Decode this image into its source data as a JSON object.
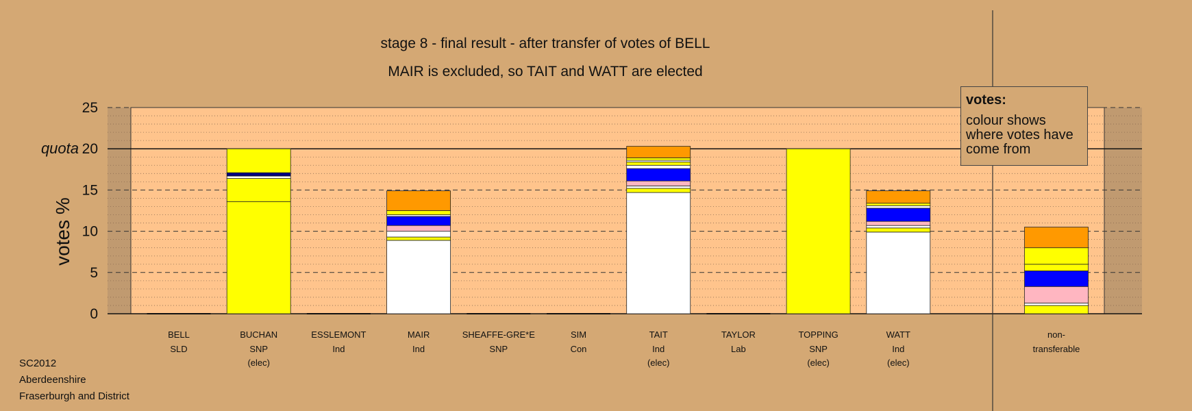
{
  "header": {
    "title": "stage 8 - final result - after transfer of votes of BELL",
    "subtitle": "MAIR is excluded, so TAIT and WATT are elected"
  },
  "legend": {
    "heading": "votes:",
    "body": "colour shows where votes have come from"
  },
  "footer": {
    "line1": "SC2012",
    "line2": "Aberdeenshire",
    "line3": "Fraserburgh and District"
  },
  "colors": {
    "background": "#D4A874",
    "plot_area": "#FFC48C",
    "yellow": "#FFFF00",
    "white": "#FFFFFF",
    "blue": "#0000FF",
    "pink": "#FFB6C1",
    "orange": "#FF9900",
    "navy": "#000080"
  },
  "chart_data": {
    "type": "bar",
    "stacked": true,
    "ylabel": "votes %",
    "ylim": [
      0,
      25
    ],
    "yticks": [
      0,
      5,
      10,
      15,
      20,
      25
    ],
    "quota": 20,
    "quota_label": "quota",
    "grid": "dashed every 5, dotted every 1",
    "candidates": [
      {
        "name": "BELL",
        "party": "SLD",
        "status": "",
        "segments": []
      },
      {
        "name": "BUCHAN",
        "party": "SNP",
        "status": "(elec)",
        "segments": [
          {
            "color": "yellow",
            "value": 13.6
          },
          {
            "color": "yellow",
            "value": 2.8
          },
          {
            "color": "white",
            "value": 0.3
          },
          {
            "color": "navy",
            "value": 0.4
          },
          {
            "color": "yellow",
            "value": 2.9
          }
        ]
      },
      {
        "name": "ESSLEMONT",
        "party": "Ind",
        "status": "",
        "segments": []
      },
      {
        "name": "MAIR",
        "party": "Ind",
        "status": "",
        "segments": [
          {
            "color": "white",
            "value": 8.9
          },
          {
            "color": "yellow",
            "value": 0.4
          },
          {
            "color": "white",
            "value": 0.7
          },
          {
            "color": "pink",
            "value": 0.7
          },
          {
            "color": "blue",
            "value": 1.1
          },
          {
            "color": "white",
            "value": 0.2
          },
          {
            "color": "yellow",
            "value": 0.5
          },
          {
            "color": "orange",
            "value": 2.4
          }
        ]
      },
      {
        "name": "SHEAFFE-GRE*E",
        "party": "SNP",
        "status": "",
        "segments": []
      },
      {
        "name": "SIM",
        "party": "Con",
        "status": "",
        "segments": []
      },
      {
        "name": "TAIT",
        "party": "Ind",
        "status": "(elec)",
        "segments": [
          {
            "color": "white",
            "value": 14.7
          },
          {
            "color": "yellow",
            "value": 0.5
          },
          {
            "color": "white",
            "value": 0.3
          },
          {
            "color": "pink",
            "value": 0.6
          },
          {
            "color": "blue",
            "value": 1.5
          },
          {
            "color": "white",
            "value": 0.4
          },
          {
            "color": "yellow",
            "value": 0.4
          },
          {
            "color": "white",
            "value": 0.2
          },
          {
            "color": "yellow",
            "value": 0.3
          },
          {
            "color": "orange",
            "value": 1.4
          }
        ]
      },
      {
        "name": "TAYLOR",
        "party": "Lab",
        "status": "",
        "segments": []
      },
      {
        "name": "TOPPING",
        "party": "SNP",
        "status": "(elec)",
        "segments": [
          {
            "color": "yellow",
            "value": 20.0
          }
        ]
      },
      {
        "name": "WATT",
        "party": "Ind",
        "status": "(elec)",
        "segments": [
          {
            "color": "white",
            "value": 9.9
          },
          {
            "color": "yellow",
            "value": 0.5
          },
          {
            "color": "white",
            "value": 0.3
          },
          {
            "color": "pink",
            "value": 0.5
          },
          {
            "color": "blue",
            "value": 1.6
          },
          {
            "color": "white",
            "value": 0.3
          },
          {
            "color": "yellow",
            "value": 0.3
          },
          {
            "color": "orange",
            "value": 1.5
          }
        ]
      }
    ],
    "nontransferable": {
      "label_line1": "non-",
      "label_line2": "transferable",
      "segments": [
        {
          "color": "yellow",
          "value": 1.0
        },
        {
          "color": "white",
          "value": 0.3
        },
        {
          "color": "pink",
          "value": 2.0
        },
        {
          "color": "blue",
          "value": 1.9
        },
        {
          "color": "yellow",
          "value": 0.8
        },
        {
          "color": "yellow",
          "value": 2.0
        },
        {
          "color": "orange",
          "value": 2.5
        }
      ]
    }
  }
}
